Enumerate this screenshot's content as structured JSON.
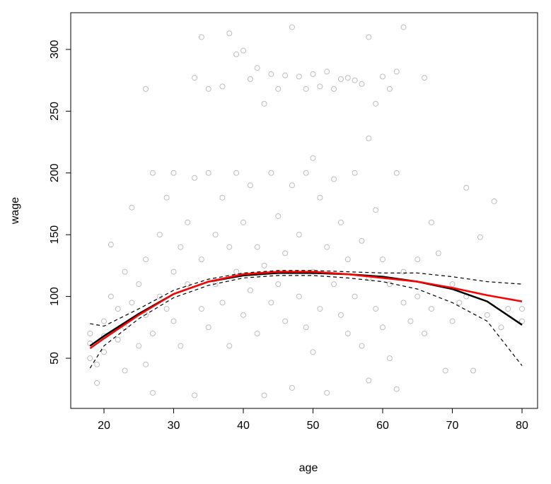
{
  "chart_data": {
    "type": "scatter",
    "xlabel": "age",
    "ylabel": "wage",
    "xlim": [
      15.23,
      82.23
    ],
    "ylim": [
      9.4,
      329.7
    ],
    "xticks": [
      20,
      30,
      40,
      50,
      60,
      70,
      80
    ],
    "yticks": [
      50,
      100,
      150,
      200,
      250,
      300
    ],
    "points": {
      "color": "#bdbdbd",
      "x": [
        34,
        38,
        40,
        39,
        42,
        44,
        46,
        48,
        50,
        52,
        54,
        56,
        58,
        59,
        60,
        62,
        63,
        47,
        35,
        37,
        43,
        45,
        51,
        53,
        57,
        61,
        66,
        33,
        41,
        49,
        55,
        58,
        50,
        26,
        18,
        18,
        19,
        20,
        20,
        21,
        21,
        22,
        22,
        23,
        23,
        24,
        24,
        25,
        25,
        26,
        26,
        27,
        27,
        28,
        28,
        29,
        29,
        30,
        30,
        30,
        31,
        31,
        32,
        32,
        33,
        33,
        34,
        34,
        35,
        35,
        36,
        36,
        37,
        37,
        38,
        38,
        39,
        39,
        40,
        40,
        41,
        41,
        42,
        42,
        43,
        43,
        44,
        44,
        45,
        45,
        46,
        46,
        47,
        47,
        48,
        48,
        49,
        49,
        50,
        50,
        51,
        51,
        52,
        52,
        53,
        53,
        54,
        54,
        55,
        55,
        56,
        56,
        57,
        57,
        58,
        58,
        59,
        59,
        60,
        60,
        61,
        61,
        62,
        62,
        63,
        63,
        64,
        65,
        65,
        66,
        67,
        67,
        68,
        69,
        70,
        70,
        71,
        72,
        72,
        73,
        74,
        75,
        76,
        77,
        78,
        80,
        80,
        18,
        19,
        20,
        23,
        26,
        27
      ],
      "y": [
        310,
        313,
        299,
        296,
        285,
        280,
        279,
        278,
        280,
        282,
        276,
        275,
        310,
        256,
        278,
        282,
        318,
        318,
        268,
        270,
        256,
        268,
        270,
        268,
        272,
        268,
        277,
        277,
        276,
        268,
        277,
        228,
        212,
        268,
        70,
        50,
        30,
        80,
        55,
        100,
        142,
        65,
        90,
        75,
        120,
        172,
        95,
        60,
        110,
        130,
        85,
        200,
        70,
        150,
        100,
        90,
        180,
        200,
        120,
        80,
        140,
        60,
        110,
        160,
        196,
        20,
        130,
        90,
        200,
        75,
        150,
        110,
        180,
        95,
        140,
        60,
        200,
        120,
        160,
        85,
        105,
        190,
        140,
        70,
        20,
        125,
        200,
        95,
        110,
        165,
        80,
        135,
        26,
        190,
        100,
        150,
        200,
        75,
        120,
        55,
        180,
        90,
        140,
        22,
        110,
        195,
        85,
        160,
        130,
        70,
        200,
        100,
        145,
        60,
        32,
        115,
        170,
        90,
        130,
        75,
        110,
        50,
        200,
        25,
        120,
        95,
        80,
        130,
        100,
        70,
        160,
        90,
        135,
        40,
        110,
        80,
        95,
        188,
        100,
        40,
        148,
        85,
        177,
        75,
        90,
        90,
        80,
        62,
        45,
        68,
        40,
        45,
        22
      ]
    },
    "x": [
      18,
      20,
      25,
      30,
      35,
      40,
      45,
      50,
      55,
      60,
      65,
      70,
      75,
      80
    ],
    "series": [
      {
        "color": "#000000",
        "dashed": false,
        "values": [
          60,
          68,
          86,
          102,
          112,
          117,
          119,
          119,
          118,
          116,
          112,
          106,
          96,
          77
        ]
      },
      {
        "color": "#000000",
        "dashed": true,
        "values": [
          78,
          76,
          90,
          105,
          114,
          119,
          121,
          121,
          120,
          119,
          119,
          116,
          112,
          110
        ]
      },
      {
        "color": "#000000",
        "dashed": true,
        "values": [
          42,
          60,
          82,
          99,
          109,
          115,
          117,
          117,
          115,
          112,
          106,
          95,
          80,
          44
        ]
      },
      {
        "color": "#ff0000",
        "dashed": false,
        "values": [
          58,
          66,
          85,
          102,
          112,
          118,
          120,
          120,
          118,
          115,
          112,
          107,
          101,
          96
        ]
      }
    ]
  }
}
